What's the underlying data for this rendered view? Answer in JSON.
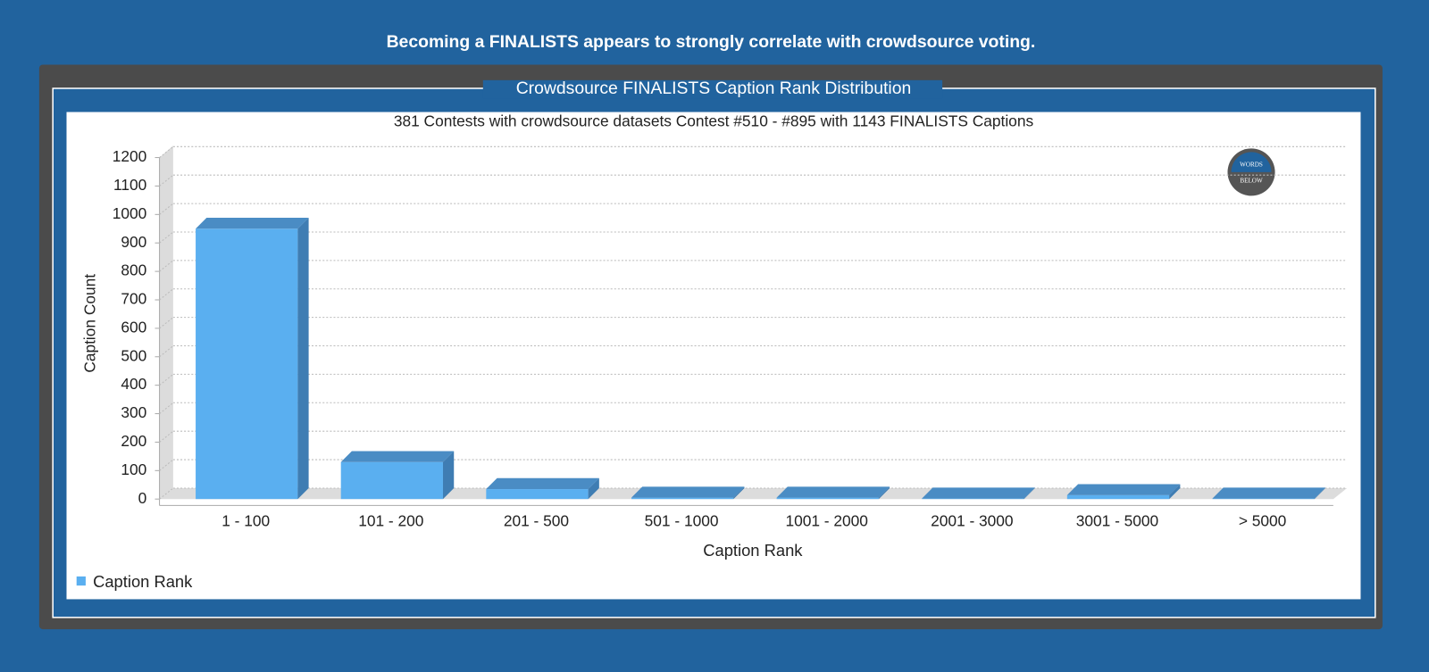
{
  "page_title": "Becoming a FINALISTS appears to strongly correlate with crowdsource voting.",
  "panel_title": "Crowdsource FINALISTS Caption Rank Distribution",
  "logo": {
    "line1": "WORDS",
    "line2": "BELOW"
  },
  "chart_data": {
    "type": "bar",
    "title": "381 Contests with crowdsource datasets Contest #510 - #895 with 1143 FINALISTS Captions",
    "x_label": "Caption Rank",
    "y_label": "Caption Count",
    "categories": [
      "1 - 100",
      "101 - 200",
      "201 - 500",
      "501 - 1000",
      "1001 - 2000",
      "2001 - 3000",
      "3001 - 5000",
      "> 5000"
    ],
    "series": [
      {
        "name": "Caption Rank",
        "color": "#5aaff0",
        "values": [
          950,
          130,
          35,
          5,
          5,
          2,
          14,
          2
        ]
      }
    ],
    "ylim": [
      0,
      1200
    ],
    "yticks": [
      0,
      100,
      200,
      300,
      400,
      500,
      600,
      700,
      800,
      900,
      1000,
      1100,
      1200
    ],
    "grid": true,
    "legend": "bottom-left"
  }
}
